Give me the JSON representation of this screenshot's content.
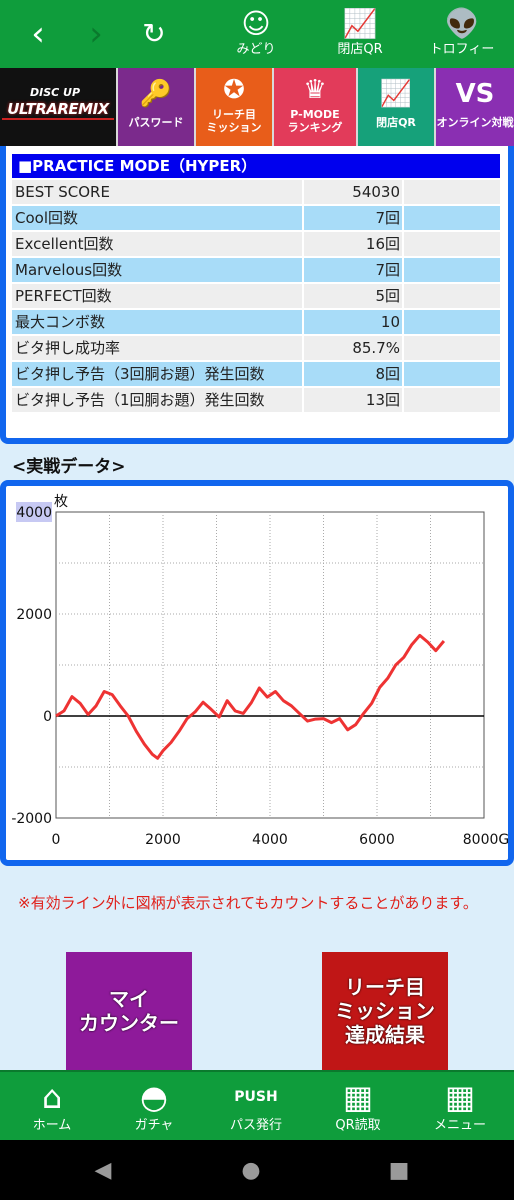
{
  "top_nav": {
    "back_icon": "chevron-left",
    "forward_icon": "chevron-right",
    "reload_icon": "reload",
    "items": [
      {
        "label": "みどり",
        "icon": "character-face"
      },
      {
        "label": "閉店QR",
        "icon": "chart-moon"
      },
      {
        "label": "トロフィー",
        "icon": "alien-trophy"
      }
    ]
  },
  "menu_strip": {
    "logo_small": "DISC UP",
    "logo_big": "ULTRAREMIX",
    "items": [
      {
        "label": "パスワード",
        "icon": "key"
      },
      {
        "label": "リーチ目\nミッション",
        "icon": "emblem"
      },
      {
        "label": "P-MODE\nランキング",
        "icon": "crown-p"
      },
      {
        "label": "閉店QR",
        "icon": "chart-moon"
      },
      {
        "label": "オンライン対戦",
        "icon": "vs-badge"
      }
    ]
  },
  "practice": {
    "title": "■PRACTICE MODE（HYPER）",
    "rows": [
      {
        "label": "BEST SCORE",
        "value": "54030"
      },
      {
        "label": "Cool回数",
        "value": "7回"
      },
      {
        "label": "Excellent回数",
        "value": "16回"
      },
      {
        "label": "Marvelous回数",
        "value": "7回"
      },
      {
        "label": "PERFECT回数",
        "value": "5回"
      },
      {
        "label": "最大コンボ数",
        "value": "10"
      },
      {
        "label": "ビタ押し成功率",
        "value": "85.7%"
      },
      {
        "label": "ビタ押し予告（3回胴お題）発生回数",
        "value": "8回"
      },
      {
        "label": "ビタ押し予告（1回胴お題）発生回数",
        "value": "13回"
      }
    ]
  },
  "section_title": "<実戦データ>",
  "chart_data": {
    "type": "line",
    "unit_label": "枚",
    "x_suffix": "G",
    "xlim": [
      0,
      8000
    ],
    "ylim": [
      -2000,
      4000
    ],
    "x_ticks": [
      "0",
      "2000",
      "4000",
      "6000",
      "8000G"
    ],
    "y_ticks": [
      "4000",
      "2000",
      "0",
      "-2000"
    ],
    "grid": true,
    "color": "#ee3333",
    "series": [
      {
        "x": [
          0,
          150,
          300,
          450,
          600,
          750,
          900,
          1050,
          1200,
          1350,
          1500,
          1650,
          1800,
          1900,
          2000,
          2150,
          2300,
          2450,
          2600,
          2750,
          2900,
          3050,
          3200,
          3350,
          3500,
          3650,
          3800,
          3950,
          4100,
          4250,
          4400,
          4550,
          4700,
          4850,
          5000,
          5150,
          5300,
          5450,
          5600,
          5750,
          5900,
          6050,
          6200,
          6350,
          6500,
          6650,
          6800,
          6950,
          7100,
          7250
        ],
        "y": [
          0,
          100,
          380,
          250,
          30,
          200,
          480,
          420,
          200,
          0,
          -300,
          -550,
          -750,
          -830,
          -680,
          -520,
          -300,
          -50,
          80,
          270,
          130,
          -20,
          300,
          100,
          50,
          260,
          550,
          370,
          480,
          300,
          200,
          50,
          -100,
          -60,
          -50,
          -130,
          -50,
          -270,
          -170,
          50,
          250,
          560,
          740,
          1000,
          1150,
          1400,
          1580,
          1450,
          1280,
          1470
        ]
      }
    ]
  },
  "notice": "※有効ライン外に図柄が表示されてもカウントすることがあります。",
  "buttons": [
    {
      "label": "マイ\nカウンター"
    },
    {
      "label": "リーチ目\nミッション\n達成結果"
    }
  ],
  "bottom_nav": [
    {
      "label": "ホーム",
      "icon": "home"
    },
    {
      "label": "ガチャ",
      "icon": "gacha-ball"
    },
    {
      "label": "パス発行",
      "icon": "push-badge"
    },
    {
      "label": "QR読取",
      "icon": "qr-code"
    },
    {
      "label": "メニュー",
      "icon": "grid-menu"
    }
  ],
  "android_nav": {
    "back": "back-triangle",
    "home": "home-circle",
    "recent": "recent-square"
  },
  "colors": {
    "header_green": "#0f9d3c",
    "frame_blue": "#1166ee",
    "row_blue": "#a8dcf8",
    "note_red": "#e0201a"
  }
}
